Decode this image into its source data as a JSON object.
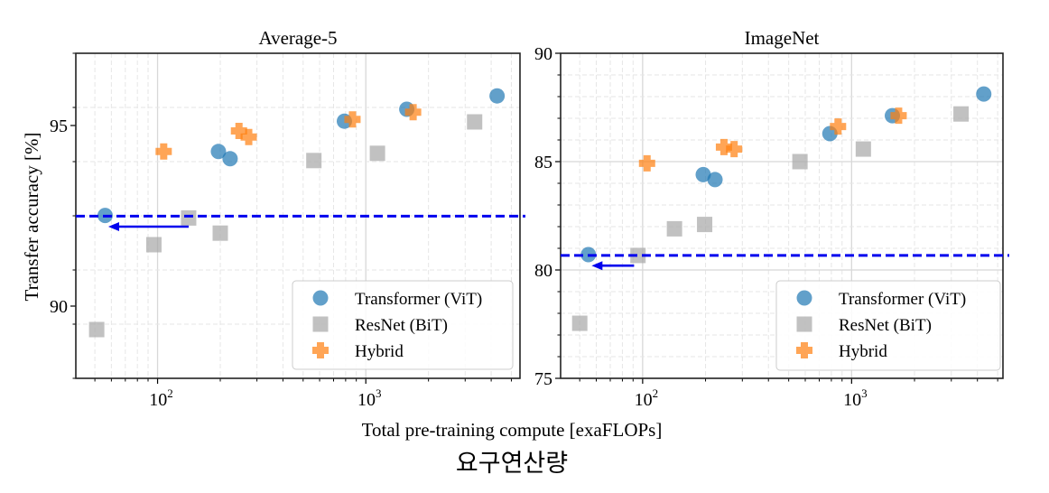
{
  "chart_data": [
    {
      "type": "scatter",
      "title": "Average-5",
      "xlabel": "Total pre-training compute [exaFLOPs]",
      "ylabel": "Transfer accuracy [%]",
      "xscale": "log",
      "xlim": [
        40.5,
        5500
      ],
      "ylim": [
        88,
        97
      ],
      "xticks": [
        {
          "value": 100,
          "base": "10",
          "exp": "2"
        },
        {
          "value": 1000,
          "base": "10",
          "exp": "3"
        }
      ],
      "yticks": [
        90,
        95
      ],
      "yminor_step": 1.5,
      "grid": true,
      "legend_position": "lower-right",
      "series": [
        {
          "name": "Transformer (ViT)",
          "marker": "circle",
          "color": "#1f77b4",
          "points": [
            [
              56,
              92.51
            ],
            [
              196,
              94.28
            ],
            [
              223,
              94.08
            ],
            [
              789,
              95.12
            ],
            [
              1573,
              95.45
            ],
            [
              4270,
              95.82
            ]
          ]
        },
        {
          "name": "ResNet (BiT)",
          "marker": "square",
          "color": "#a6a6a6",
          "points": [
            [
              51,
              89.35
            ],
            [
              96,
              91.7
            ],
            [
              141,
              92.44
            ],
            [
              200,
              92.02
            ],
            [
              563,
              94.03
            ],
            [
              1137,
              94.23
            ],
            [
              3330,
              95.1
            ]
          ]
        },
        {
          "name": "Hybrid",
          "marker": "plus",
          "color": "#ff7f0e",
          "points": [
            [
              107,
              94.28
            ],
            [
              246,
              94.85
            ],
            [
              274,
              94.68
            ],
            [
              863,
              95.17
            ],
            [
              1687,
              95.37
            ]
          ]
        }
      ],
      "annotations": {
        "reference_line_y": 92.49,
        "reference_line_color": "#0000ee",
        "arrow_from_x": 141,
        "arrow_to_x": 58,
        "arrow_y": 92.2
      }
    },
    {
      "type": "scatter",
      "title": "ImageNet",
      "xlabel": "Total pre-training compute [exaFLOPs]",
      "ylabel": "",
      "xscale": "log",
      "xlim": [
        40.5,
        5300
      ],
      "ylim": [
        75,
        90
      ],
      "xticks": [
        {
          "value": 100,
          "base": "10",
          "exp": "2"
        },
        {
          "value": 1000,
          "base": "10",
          "exp": "3"
        }
      ],
      "yticks": [
        75,
        80,
        85,
        90
      ],
      "yminor_step": 1,
      "grid": true,
      "legend_position": "lower-right",
      "series": [
        {
          "name": "Transformer (ViT)",
          "marker": "circle",
          "color": "#1f77b4",
          "points": [
            [
              55,
              80.71
            ],
            [
              195,
              84.4
            ],
            [
              222,
              84.17
            ],
            [
              787,
              86.29
            ],
            [
              1567,
              87.12
            ],
            [
              4290,
              88.12
            ]
          ]
        },
        {
          "name": "ResNet (BiT)",
          "marker": "square",
          "color": "#a6a6a6",
          "points": [
            [
              50,
              77.54
            ],
            [
              95,
              80.67
            ],
            [
              142,
              81.9
            ],
            [
              198,
              82.1
            ],
            [
              566,
              85.0
            ],
            [
              1138,
              85.58
            ],
            [
              3340,
              87.2
            ]
          ]
        },
        {
          "name": "Hybrid",
          "marker": "plus",
          "color": "#ff7f0e",
          "points": [
            [
              105,
              84.92
            ],
            [
              245,
              85.67
            ],
            [
              274,
              85.58
            ],
            [
              861,
              86.62
            ],
            [
              1679,
              87.12
            ]
          ]
        }
      ],
      "annotations": {
        "reference_line_y": 80.67,
        "reference_line_color": "#0000ee",
        "arrow_from_x": 91,
        "arrow_to_x": 57,
        "arrow_y": 80.2
      }
    }
  ],
  "shared_xlabel": "Total pre-training compute [exaFLOPs]",
  "caption_korean": "요구연산량"
}
